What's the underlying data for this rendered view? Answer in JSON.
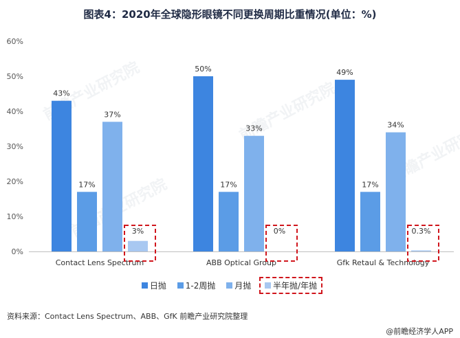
{
  "title": "图表4：2020年全球隐形眼镜不同更换周期比重情况(单位：%)",
  "source": "资料来源：Contact Lens Spectrum、ABB、GfK 前瞻产业研究院整理",
  "brand": "@前瞻经济学人APP",
  "watermark": "前瞻产业研究院",
  "colors": {
    "series": [
      "#3d85e0",
      "#5b9ce6",
      "#7fb1ec",
      "#a8c8f1"
    ],
    "highlight": "#d0151c"
  },
  "chart_data": {
    "type": "bar",
    "categories": [
      "Contact Lens Spectrum",
      "ABB Optical Group",
      "Gfk Retaul & Technology"
    ],
    "series": [
      {
        "name": "日抛",
        "values": [
          43,
          50,
          49
        ],
        "labels": [
          "43%",
          "50%",
          "49%"
        ]
      },
      {
        "name": "1-2周抛",
        "values": [
          17,
          17,
          17
        ],
        "labels": [
          "17%",
          "17%",
          "17%"
        ]
      },
      {
        "name": "月抛",
        "values": [
          37,
          33,
          34
        ],
        "labels": [
          "37%",
          "33%",
          "34%"
        ]
      },
      {
        "name": "半年抛/年抛",
        "values": [
          3,
          0,
          0.3
        ],
        "labels": [
          "3%",
          "0%",
          "0.3%"
        ]
      }
    ],
    "ylim": [
      0,
      60
    ],
    "yticks": [
      "0%",
      "10%",
      "20%",
      "30%",
      "40%",
      "50%",
      "60%"
    ],
    "ytick_values": [
      0,
      10,
      20,
      30,
      40,
      50,
      60
    ],
    "grid": false,
    "legend": "bottom",
    "highlighted_series": "半年抛/年抛"
  }
}
